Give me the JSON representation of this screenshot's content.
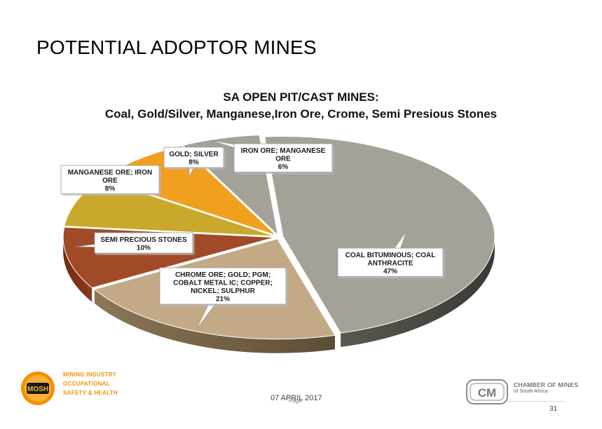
{
  "slide": {
    "title": "POTENTIAL ADOPTOR MINES",
    "date": "07 APRIL 2017",
    "page_label": "Page",
    "page_number": "31"
  },
  "logos": {
    "mosh": {
      "badge": "MOSH",
      "line1": "MINING INDUSTRY",
      "line2": "OCCUPATIONAL",
      "line3": "SAFETY & HEALTH"
    },
    "chamber": {
      "badge": "CM",
      "line1": "CHAMBER OF MINES",
      "line2": "of South Africa"
    }
  },
  "colors": {
    "coal": "#a4a298",
    "chrome": "#c4a986",
    "semi_precious": "#a14a28",
    "manganese": "#c9a82b",
    "gold": "#f0a01e",
    "iron": "#a4a298",
    "callout_border": "#9a9a9a"
  },
  "chart_data": {
    "type": "pie",
    "title": "SA OPEN PIT/CAST MINES:",
    "subtitle": "Coal, Gold/Silver, Manganese,Iron Ore, Crome, Semi Presious Stones",
    "slices": [
      {
        "key": "coal",
        "label_lines": [
          "COAL BITUMINOUS; COAL",
          "ANTHRACITE"
        ],
        "percent_label": "47%",
        "value": 47
      },
      {
        "key": "chrome",
        "label_lines": [
          "CHROME ORE; GOLD; PGM;",
          "COBALT METAL IC; COPPER;",
          "NICKEL; SULPHUR"
        ],
        "percent_label": "21%",
        "value": 21
      },
      {
        "key": "semi_precious",
        "label_lines": [
          "SEMI PRECIOUS STONES"
        ],
        "percent_label": "10%",
        "value": 10
      },
      {
        "key": "manganese",
        "label_lines": [
          "MANGANESE ORE; IRON",
          "ORE"
        ],
        "percent_label": "8%",
        "value": 8
      },
      {
        "key": "gold",
        "label_lines": [
          "GOLD; SILVER"
        ],
        "percent_label": "8%",
        "value": 8
      },
      {
        "key": "iron",
        "label_lines": [
          "IRON ORE; MANGANESE",
          "ORE"
        ],
        "percent_label": "6%",
        "value": 6
      }
    ]
  }
}
